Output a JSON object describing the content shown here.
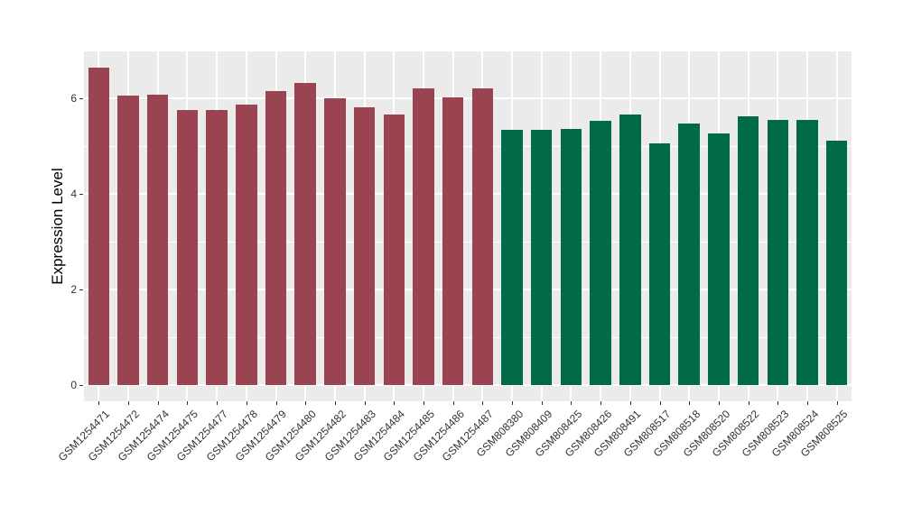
{
  "chart_data": {
    "type": "bar",
    "title": "",
    "xlabel": "",
    "ylabel": "Expression Level",
    "categories": [
      "GSM1254471",
      "GSM1254472",
      "GSM1254474",
      "GSM1254475",
      "GSM1254477",
      "GSM1254478",
      "GSM1254479",
      "GSM1254480",
      "GSM1254482",
      "GSM1254483",
      "GSM1254484",
      "GSM1254485",
      "GSM1254486",
      "GSM1254487",
      "GSM808380",
      "GSM808409",
      "GSM808425",
      "GSM808426",
      "GSM808491",
      "GSM808517",
      "GSM808518",
      "GSM808520",
      "GSM808522",
      "GSM808523",
      "GSM808524",
      "GSM808525"
    ],
    "values": [
      6.65,
      6.06,
      6.08,
      5.75,
      5.75,
      5.86,
      6.15,
      6.33,
      6.0,
      5.82,
      5.67,
      6.2,
      6.01,
      6.2,
      5.35,
      5.34,
      5.36,
      5.53,
      5.66,
      5.06,
      5.47,
      5.27,
      5.62,
      5.55,
      5.54,
      5.12
    ],
    "groups": [
      "maroon",
      "maroon",
      "maroon",
      "maroon",
      "maroon",
      "maroon",
      "maroon",
      "maroon",
      "maroon",
      "maroon",
      "maroon",
      "maroon",
      "maroon",
      "maroon",
      "green",
      "green",
      "green",
      "green",
      "green",
      "green",
      "green",
      "green",
      "green",
      "green",
      "green",
      "green"
    ],
    "palette": {
      "maroon": "#9B4451",
      "green": "#016A46"
    },
    "yticks": [
      0,
      2,
      4,
      6
    ],
    "minor_yticks": [
      1,
      3,
      5
    ],
    "ylim": [
      -0.33,
      6.98
    ],
    "grid": true,
    "legend": false,
    "panel_bg": "#EBEBEB",
    "grid_color": "#FFFFFF"
  }
}
